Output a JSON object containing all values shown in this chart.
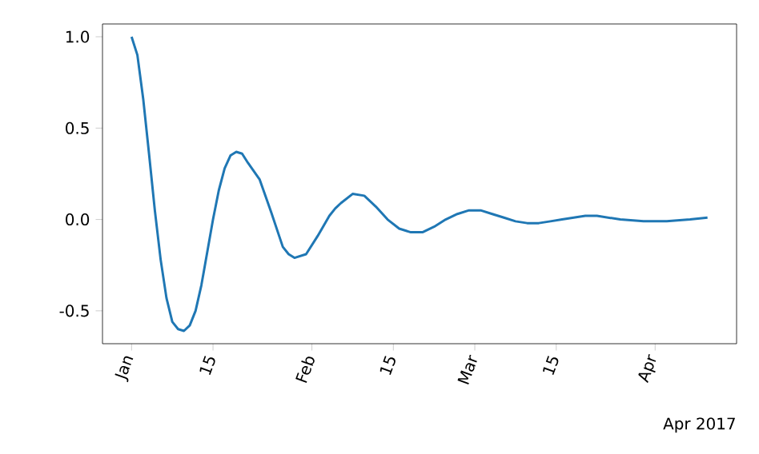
{
  "chart_data": {
    "type": "line",
    "x": [
      "2017-01-01",
      "2017-01-02",
      "2017-01-03",
      "2017-01-04",
      "2017-01-05",
      "2017-01-06",
      "2017-01-07",
      "2017-01-08",
      "2017-01-09",
      "2017-01-10",
      "2017-01-11",
      "2017-01-12",
      "2017-01-13",
      "2017-01-14",
      "2017-01-15",
      "2017-01-16",
      "2017-01-17",
      "2017-01-18",
      "2017-01-19",
      "2017-01-20",
      "2017-01-21",
      "2017-01-23",
      "2017-01-25",
      "2017-01-27",
      "2017-01-28",
      "2017-01-29",
      "2017-01-31",
      "2017-02-02",
      "2017-02-04",
      "2017-02-05",
      "2017-02-06",
      "2017-02-08",
      "2017-02-10",
      "2017-02-12",
      "2017-02-14",
      "2017-02-16",
      "2017-02-18",
      "2017-02-20",
      "2017-02-22",
      "2017-02-24",
      "2017-02-26",
      "2017-02-28",
      "2017-03-02",
      "2017-03-04",
      "2017-03-06",
      "2017-03-08",
      "2017-03-10",
      "2017-03-12",
      "2017-03-14",
      "2017-03-16",
      "2017-03-18",
      "2017-03-20",
      "2017-03-22",
      "2017-03-26",
      "2017-03-30",
      "2017-04-03",
      "2017-04-07",
      "2017-04-10"
    ],
    "series": [
      {
        "color": "#1f77b4",
        "values": [
          1.0,
          0.9,
          0.66,
          0.36,
          0.05,
          -0.22,
          -0.43,
          -0.56,
          -0.6,
          -0.61,
          -0.58,
          -0.5,
          -0.36,
          -0.18,
          0.0,
          0.16,
          0.28,
          0.35,
          0.37,
          0.36,
          0.31,
          0.22,
          0.04,
          -0.15,
          -0.19,
          -0.21,
          -0.19,
          -0.09,
          0.02,
          0.06,
          0.09,
          0.14,
          0.13,
          0.07,
          0.0,
          -0.05,
          -0.07,
          -0.07,
          -0.04,
          0.0,
          0.03,
          0.05,
          0.05,
          0.03,
          0.01,
          -0.01,
          -0.02,
          -0.02,
          -0.01,
          0.0,
          0.01,
          0.02,
          0.02,
          0.0,
          -0.01,
          -0.01,
          0.0,
          0.01
        ]
      }
    ],
    "xlim": [
      "2016-12-27",
      "2017-04-15"
    ],
    "xticks": [
      {
        "value": "2017-01-01",
        "label": "Jan"
      },
      {
        "value": "2017-01-15",
        "label": "15"
      },
      {
        "value": "2017-02-01",
        "label": "Feb"
      },
      {
        "value": "2017-02-15",
        "label": "15"
      },
      {
        "value": "2017-03-01",
        "label": "Mar"
      },
      {
        "value": "2017-03-15",
        "label": "15"
      },
      {
        "value": "2017-04-01",
        "label": "Apr"
      }
    ],
    "ylim": [
      -0.68,
      1.07
    ],
    "yticks": [
      {
        "value": -0.5,
        "label": "-0.5"
      },
      {
        "value": 0,
        "label": "0.0"
      },
      {
        "value": 0.5,
        "label": "0.5"
      },
      {
        "value": 1,
        "label": "1.0"
      }
    ],
    "annotations": [
      "Apr 2017"
    ]
  }
}
